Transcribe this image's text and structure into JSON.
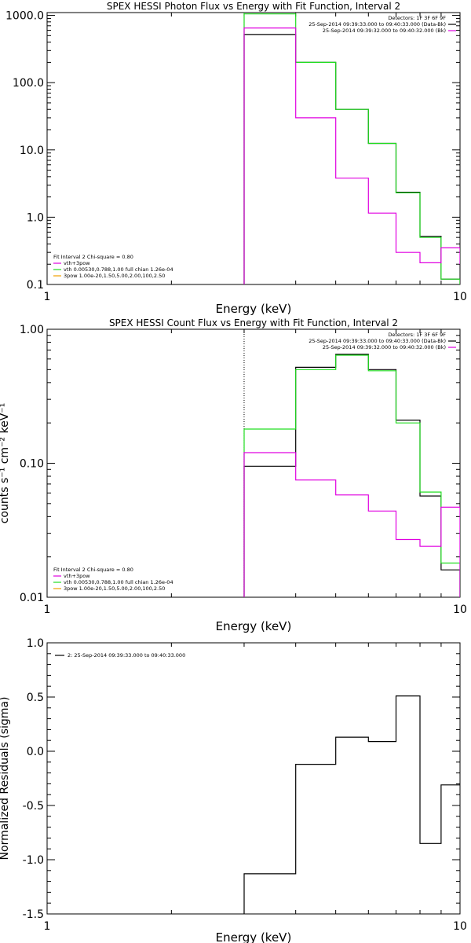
{
  "colors": {
    "black": "#000000",
    "magenta": "#e000e0",
    "green": "#20dd20",
    "orange": "#f0a000"
  },
  "chart_data": [
    {
      "type": "line",
      "title": "SPEX HESSI Photon Flux vs Energy with Fit Function, Interval 2",
      "xlabel": "Energy (keV)",
      "ylabel": "",
      "xscale": "log",
      "yscale": "log",
      "xlim": [
        1,
        10
      ],
      "ylim": [
        0.1,
        1100
      ],
      "xticks": [
        {
          "v": 1,
          "label": "1"
        },
        {
          "v": 10,
          "label": "10"
        }
      ],
      "yticks": [
        {
          "v": 0.1,
          "label": "0.1"
        },
        {
          "v": 1,
          "label": "1.0"
        },
        {
          "v": 10,
          "label": "10.0"
        },
        {
          "v": 100,
          "label": "100.0"
        },
        {
          "v": 1000,
          "label": "1000.0"
        }
      ],
      "yminor": true,
      "vline": {
        "x": 3,
        "color": "green",
        "dash": true
      },
      "legend_top": [
        "Detectors: 1F 3F 6F 9F",
        "25-Sep-2014 09:39:33.000 to 09:40:33.000 (Data-Bk)",
        "25-Sep-2014 09:39:32.000 to 09:40:32.000 (Bk)"
      ],
      "legend_top_colors": [
        "",
        "black",
        "magenta"
      ],
      "legend_bottom": [
        {
          "text": "Fit Interval 2   Chi-square = 0.80",
          "color": ""
        },
        {
          "text": "vth+3pow",
          "color": "magenta"
        },
        {
          "text": "vth 0.00530,0.788,1.00  full chian 1.26e-04",
          "color": "green"
        },
        {
          "text": "3pow 1.00e-20,1.50,5.00,2.00,100,2.50",
          "color": "orange"
        }
      ],
      "edges": [
        3,
        4,
        5,
        6,
        7,
        8,
        9,
        10
      ],
      "series": [
        {
          "color": "black",
          "values": [
            520,
            200,
            40,
            12.5,
            2.35,
            0.52,
            0.12
          ]
        },
        {
          "color": "green",
          "values": [
            1050,
            200,
            40,
            12.5,
            2.3,
            0.5,
            0.12
          ]
        },
        {
          "color": "magenta",
          "values": [
            650,
            30,
            3.8,
            1.15,
            0.3,
            0.21,
            0.35
          ]
        }
      ],
      "tail": {
        "black": 0.1,
        "green": 0.1,
        "magenta": 0.2
      }
    },
    {
      "type": "line",
      "title": "SPEX HESSI Count Flux vs Energy with Fit Function, Interval 2",
      "xlabel": "Energy (keV)",
      "ylabel": "counts s⁻¹ cm⁻² keV⁻¹",
      "xscale": "log",
      "yscale": "log",
      "xlim": [
        1,
        10
      ],
      "ylim": [
        0.01,
        1.0
      ],
      "xticks": [
        {
          "v": 1,
          "label": "1"
        },
        {
          "v": 10,
          "label": "10"
        }
      ],
      "yticks": [
        {
          "v": 0.01,
          "label": "0.01"
        },
        {
          "v": 0.1,
          "label": "0.10"
        },
        {
          "v": 1,
          "label": "1.00"
        }
      ],
      "yminor": true,
      "vline": {
        "x": 3,
        "color": "black",
        "dash": true
      },
      "legend_top": [
        "Detectors: 1F 3F 6F 9F",
        "25-Sep-2014 09:39:33.000 to 09:40:33.000 (Data-Bk)",
        "25-Sep-2014 09:39:32.000 to 09:40:32.000 (Bk)"
      ],
      "legend_top_colors": [
        "",
        "black",
        "magenta"
      ],
      "legend_bottom": [
        {
          "text": "Fit Interval 2   Chi-square = 0.80",
          "color": ""
        },
        {
          "text": "vth+3pow",
          "color": "magenta"
        },
        {
          "text": "vth 0.00530,0.788,1.00  full chian 1.26e-04",
          "color": "green"
        },
        {
          "text": "3pow 1.00e-20,1.50,5.00,2.00,100,2.50",
          "color": "orange"
        }
      ],
      "edges": [
        3,
        4,
        5,
        6,
        7,
        8,
        9,
        10
      ],
      "series": [
        {
          "color": "black",
          "values": [
            0.095,
            0.52,
            0.65,
            0.5,
            0.21,
            0.057,
            0.016
          ]
        },
        {
          "color": "green",
          "values": [
            0.18,
            0.5,
            0.64,
            0.49,
            0.2,
            0.061,
            0.018
          ]
        },
        {
          "color": "magenta",
          "values": [
            0.12,
            0.075,
            0.058,
            0.044,
            0.027,
            0.024,
            0.047
          ]
        }
      ],
      "tail": {
        "black": 0.01,
        "green": 0.01,
        "magenta": 0.01
      }
    },
    {
      "type": "line",
      "title": "",
      "xlabel": "Energy (keV)",
      "ylabel": "Normalized Residuals (sigma)",
      "xscale": "log",
      "yscale": "linear",
      "xlim": [
        1,
        10
      ],
      "ylim": [
        -1.5,
        1.0
      ],
      "xticks": [
        {
          "v": 1,
          "label": "1"
        },
        {
          "v": 10,
          "label": "10"
        }
      ],
      "yticks": [
        {
          "v": -1.5,
          "label": "-1.5"
        },
        {
          "v": -1.0,
          "label": "-1.0"
        },
        {
          "v": -0.5,
          "label": "-0.5"
        },
        {
          "v": 0.0,
          "label": "0.0"
        },
        {
          "v": 0.5,
          "label": "0.5"
        },
        {
          "v": 1.0,
          "label": "1.0"
        }
      ],
      "yminor": false,
      "legend_top": [],
      "legend_left": "2: 25-Sep-2014 09:39:33.000 to 09:40:33.000",
      "legend_bottom": [],
      "edges": [
        3,
        4,
        5,
        6,
        7,
        8,
        9,
        10
      ],
      "series": [
        {
          "color": "black",
          "values": [
            -1.13,
            -0.12,
            0.13,
            0.09,
            0.51,
            -0.85,
            -0.31
          ]
        }
      ],
      "tail": {
        "black": null
      }
    }
  ]
}
